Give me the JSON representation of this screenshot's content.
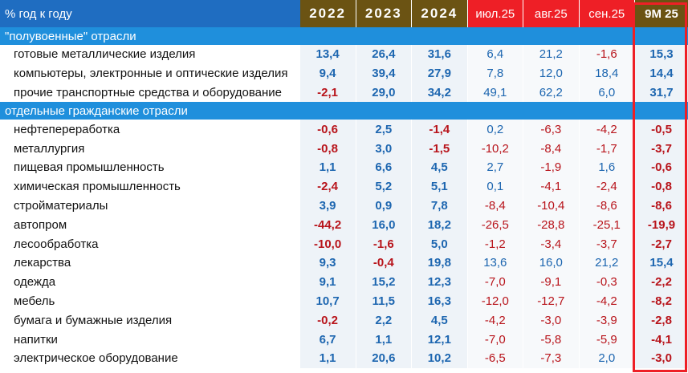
{
  "header": {
    "label": "% год к году",
    "columns": [
      "2022",
      "2023",
      "2024",
      "июл.25",
      "авг.25",
      "сен.25",
      "9М 25"
    ]
  },
  "sections": [
    {
      "title": "\"полувоенные\" отрасли",
      "rows": [
        {
          "label": "готовые металлические изделия",
          "values": [
            "13,4",
            "26,4",
            "31,6",
            "6,4",
            "21,2",
            "-1,6",
            "15,3"
          ]
        },
        {
          "label": "компьютеры, электронные и оптические изделия",
          "values": [
            "9,4",
            "39,4",
            "27,9",
            "7,8",
            "12,0",
            "18,4",
            "14,4"
          ]
        },
        {
          "label": "прочие транспортные средства и оборудование",
          "values": [
            "-2,1",
            "29,0",
            "34,2",
            "49,1",
            "62,2",
            "6,0",
            "31,7"
          ]
        }
      ]
    },
    {
      "title": "отдельные гражданские отрасли",
      "rows": [
        {
          "label": "нефтепереработка",
          "values": [
            "-0,6",
            "2,5",
            "-1,4",
            "0,2",
            "-6,3",
            "-4,2",
            "-0,5"
          ]
        },
        {
          "label": "металлургия",
          "values": [
            "-0,8",
            "3,0",
            "-1,5",
            "-10,2",
            "-8,4",
            "-1,7",
            "-3,7"
          ]
        },
        {
          "label": "пищевая промышленность",
          "values": [
            "1,1",
            "6,6",
            "4,5",
            "2,7",
            "-1,9",
            "1,6",
            "-0,6"
          ]
        },
        {
          "label": "химическая промышленность",
          "values": [
            "-2,4",
            "5,2",
            "5,1",
            "0,1",
            "-4,1",
            "-2,4",
            "-0,8"
          ]
        },
        {
          "label": "стройматериалы",
          "values": [
            "3,9",
            "0,9",
            "7,8",
            "-8,4",
            "-10,4",
            "-8,6",
            "-8,6"
          ]
        },
        {
          "label": "автопром",
          "values": [
            "-44,2",
            "16,0",
            "18,2",
            "-26,5",
            "-28,8",
            "-25,1",
            "-19,9"
          ]
        },
        {
          "label": "лесообработка",
          "values": [
            "-10,0",
            "-1,6",
            "5,0",
            "-1,2",
            "-3,4",
            "-3,7",
            "-2,7"
          ]
        },
        {
          "label": "лекарства",
          "values": [
            "9,3",
            "-0,4",
            "19,8",
            "13,6",
            "16,0",
            "21,2",
            "15,4"
          ]
        },
        {
          "label": "одежда",
          "values": [
            "9,1",
            "15,2",
            "12,3",
            "-7,0",
            "-9,1",
            "-0,3",
            "-2,2"
          ]
        },
        {
          "label": "мебель",
          "values": [
            "10,7",
            "11,5",
            "16,3",
            "-12,0",
            "-12,7",
            "-4,2",
            "-8,2"
          ]
        },
        {
          "label": "бумага и бумажные изделия",
          "values": [
            "-0,2",
            "2,2",
            "4,5",
            "-4,2",
            "-3,0",
            "-3,9",
            "-2,8"
          ]
        },
        {
          "label": "напитки",
          "values": [
            "6,7",
            "1,1",
            "12,1",
            "-7,0",
            "-5,8",
            "-5,9",
            "-4,1"
          ]
        },
        {
          "label": "электрическое оборудование",
          "values": [
            "1,1",
            "20,6",
            "10,2",
            "-6,5",
            "-7,3",
            "2,0",
            "-3,0"
          ]
        }
      ]
    }
  ],
  "colors": {
    "header_blue": "#1f6dc1",
    "section_blue": "#1f8fdc",
    "year_brown": "#6b5313",
    "month_red": "#ee1f26",
    "positive_blue": "#1d66b0",
    "negative_red": "#b8141b",
    "highlight_frame": "#ee1f26"
  }
}
